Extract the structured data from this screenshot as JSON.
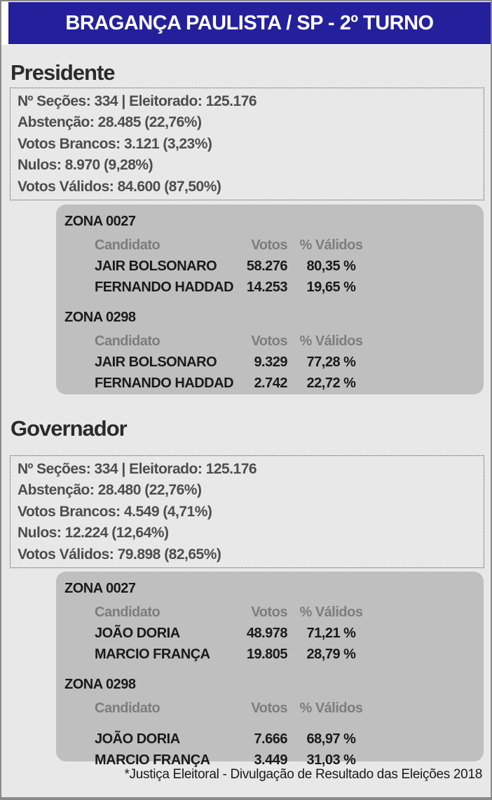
{
  "banner": {
    "title": "BRAGANÇA PAULISTA / SP - 2º TURNO"
  },
  "colors": {
    "banner_bg": "#24209c",
    "banner_text": "#ffffff",
    "page_bg": "#e8e8e8",
    "zone_box_bg": "#bfbfbf",
    "stats_text": "#4d4d4d",
    "muted_header_text": "#7d7d7d"
  },
  "columns": {
    "candidate": "Candidato",
    "votes": "Votos",
    "pct": "% Válidos"
  },
  "sections": [
    {
      "title": "Presidente",
      "stats": [
        "Nº Seções: 334 | Eleitorado: 125.176",
        "Abstenção: 28.485 (22,76%)",
        "Votos Brancos: 3.121 (3,23%)",
        "Nulos: 8.970 (9,28%)",
        "Votos Válidos: 84.600 (87,50%)"
      ],
      "zones": [
        {
          "name": "ZONA 0027",
          "rows": [
            {
              "candidate": "JAIR BOLSONARO",
              "votes": "58.276",
              "pct": "80,35 %"
            },
            {
              "candidate": "FERNANDO HADDAD",
              "votes": "14.253",
              "pct": "19,65 %"
            }
          ]
        },
        {
          "name": "ZONA 0298",
          "rows": [
            {
              "candidate": "JAIR BOLSONARO",
              "votes": "9.329",
              "pct": "77,28 %"
            },
            {
              "candidate": "FERNANDO HADDAD",
              "votes": "2.742",
              "pct": "22,72 %"
            }
          ]
        }
      ]
    },
    {
      "title": "Governador",
      "stats": [
        "Nº Seções: 334 | Eleitorado: 125.176",
        "Abstenção: 28.480 (22,76%)",
        "Votos Brancos: 4.549 (4,71%)",
        "Nulos: 12.224 (12,64%)",
        "Votos Válidos: 79.898 (82,65%)"
      ],
      "zones": [
        {
          "name": "ZONA 0027",
          "rows": [
            {
              "candidate": "JOÃO DORIA",
              "votes": "48.978",
              "pct": "71,21 %"
            },
            {
              "candidate": "MARCIO FRANÇA",
              "votes": "19.805",
              "pct": "28,79 %"
            }
          ]
        },
        {
          "name": "ZONA 0298",
          "rows": [
            {
              "candidate": "JOÃO DORIA",
              "votes": "7.666",
              "pct": "68,97 %"
            },
            {
              "candidate": "MARCIO FRANÇA",
              "votes": "3.449",
              "pct": "31,03 %"
            }
          ]
        }
      ]
    }
  ],
  "footer": {
    "note": "*Justiça Eleitoral - Divulgação de Resultado das Eleições 2018"
  }
}
